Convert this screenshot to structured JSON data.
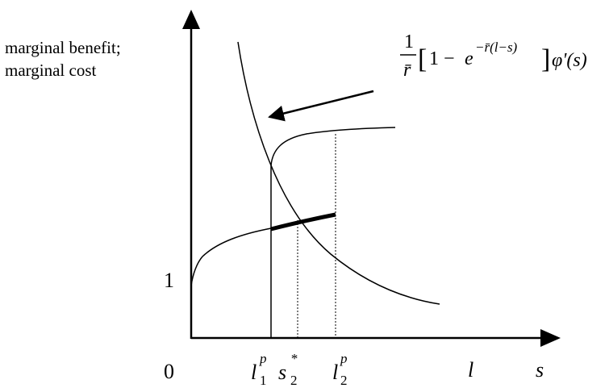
{
  "axis": {
    "y_label_line1": "marginal benefit;",
    "y_label_line2": "marginal cost",
    "origin_label": "0",
    "y_tick_label": "1",
    "x_axis_label": "s"
  },
  "x_marks": {
    "l1p": {
      "base": "l",
      "sub": "1",
      "sup": "p"
    },
    "s2star": {
      "base": "s",
      "sub": "2",
      "sup": "*"
    },
    "l2p": {
      "base": "l",
      "sub": "2",
      "sup": "p"
    },
    "l": {
      "base": "l"
    }
  },
  "formula": {
    "numerator": "1",
    "denominator": "r̄",
    "open_bracket": "[",
    "one_minus": "1 − ",
    "e": "e",
    "exponent": "−r̄(l−s)",
    "close_bracket": "]",
    "phi": "φ'(s)"
  },
  "colors": {
    "ink": "#000000",
    "background": "#ffffff"
  }
}
